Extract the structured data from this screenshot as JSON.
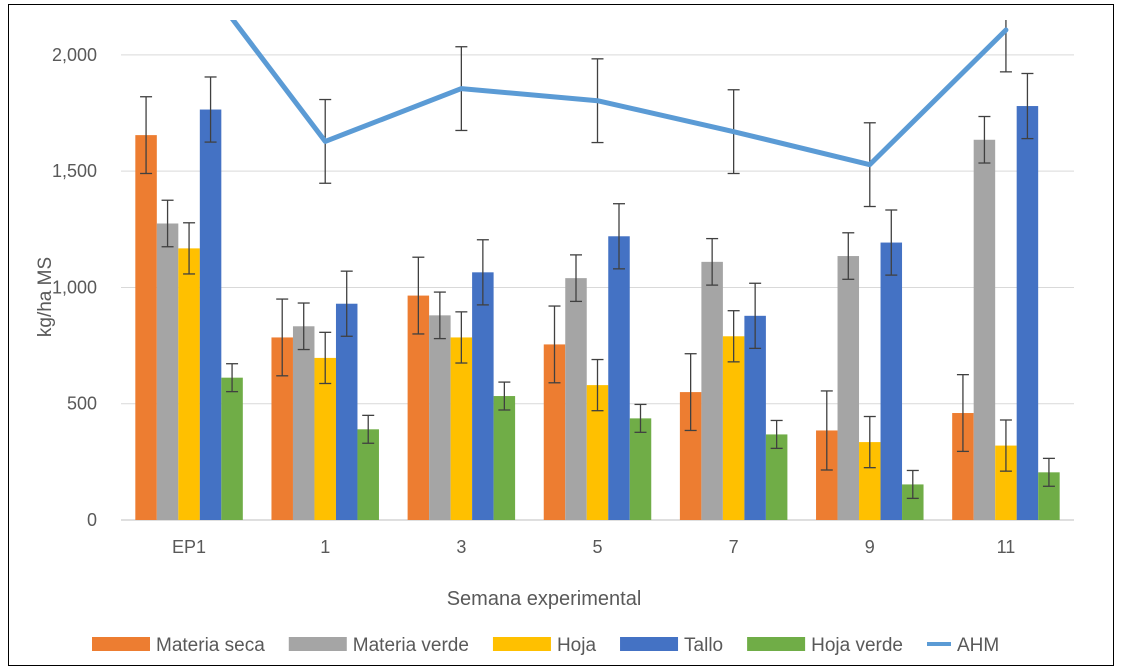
{
  "chart_data": {
    "type": "bar",
    "title": "",
    "xlabel": "Semana experimental",
    "ylabel": "kg/ha MS",
    "ylim": [
      0,
      2150
    ],
    "yticks": [
      0,
      500,
      1000,
      1500,
      2000
    ],
    "ytick_labels": [
      "0",
      "500",
      "1,000",
      "1,500",
      "2,000"
    ],
    "grid": true,
    "legend_position": "bottom",
    "categories": [
      "EP1",
      "1",
      "3",
      "5",
      "7",
      "9",
      "11"
    ],
    "series": [
      {
        "name": "Materia seca",
        "kind": "bar",
        "color": "#ED7D31",
        "values": [
          1655,
          785,
          965,
          755,
          550,
          385,
          460
        ],
        "errors": [
          165,
          165,
          165,
          165,
          165,
          170,
          165
        ]
      },
      {
        "name": "Materia verde",
        "kind": "bar",
        "color": "#A5A5A5",
        "values": [
          1275,
          833,
          880,
          1040,
          1110,
          1135,
          1635
        ],
        "errors": [
          100,
          100,
          100,
          100,
          100,
          100,
          100
        ]
      },
      {
        "name": "Hoja",
        "kind": "bar",
        "color": "#FFC000",
        "values": [
          1168,
          697,
          785,
          580,
          790,
          335,
          320
        ],
        "errors": [
          110,
          110,
          110,
          110,
          110,
          110,
          110
        ]
      },
      {
        "name": "Tallo",
        "kind": "bar",
        "color": "#4472C4",
        "values": [
          1765,
          930,
          1065,
          1220,
          878,
          1193,
          1780
        ],
        "errors": [
          140,
          140,
          140,
          140,
          140,
          140,
          140
        ]
      },
      {
        "name": "Hoja verde",
        "kind": "bar",
        "color": "#70AD47",
        "values": [
          612,
          390,
          533,
          437,
          368,
          153,
          205
        ],
        "errors": [
          60,
          60,
          60,
          60,
          60,
          60,
          60
        ]
      },
      {
        "name": "AHM",
        "kind": "line",
        "color": "#5B9BD5",
        "values": [
          2400,
          1628,
          1855,
          1803,
          1670,
          1528,
          2107
        ],
        "errors": [
          null,
          180,
          180,
          180,
          180,
          180,
          180
        ]
      }
    ]
  }
}
